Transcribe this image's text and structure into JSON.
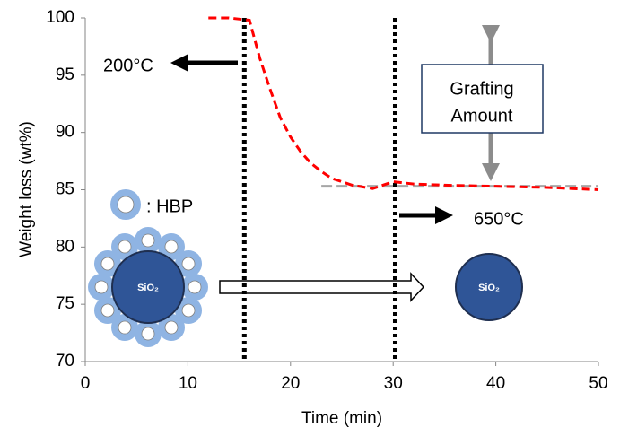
{
  "chart_data": {
    "type": "line",
    "x_label": "Time (min)",
    "y_label": "Weight loss (wt%)",
    "x": [
      12,
      14,
      16,
      17,
      18,
      19,
      20,
      21,
      22,
      23,
      24,
      26,
      28,
      30,
      32,
      35,
      40,
      45,
      50
    ],
    "series": [
      {
        "color": "#ff0000",
        "values": [
          100,
          100,
          99.8,
          96.5,
          93.8,
          91.3,
          89.6,
          88.3,
          87.3,
          86.6,
          86.0,
          85.4,
          85.1,
          85.7,
          85.5,
          85.4,
          85.3,
          85.2,
          85.0
        ]
      }
    ],
    "xlim": [
      0,
      50
    ],
    "xticks": [
      0,
      10,
      20,
      30,
      40,
      50
    ],
    "ylim": [
      70,
      100
    ],
    "yticks": [
      70,
      75,
      80,
      85,
      90,
      95,
      100
    ],
    "vertical_lines": [
      15.5,
      30.2
    ],
    "reference_line": {
      "y": 85.3,
      "x": [
        23,
        50
      ],
      "color": "#a6a6a6"
    },
    "annotations": {
      "temp_low": "200°C",
      "temp_high": "650°C",
      "grafting": [
        "Grafting",
        "Amount"
      ],
      "legend_hbp": ": HBP",
      "particle_label": "SiO₂"
    }
  }
}
